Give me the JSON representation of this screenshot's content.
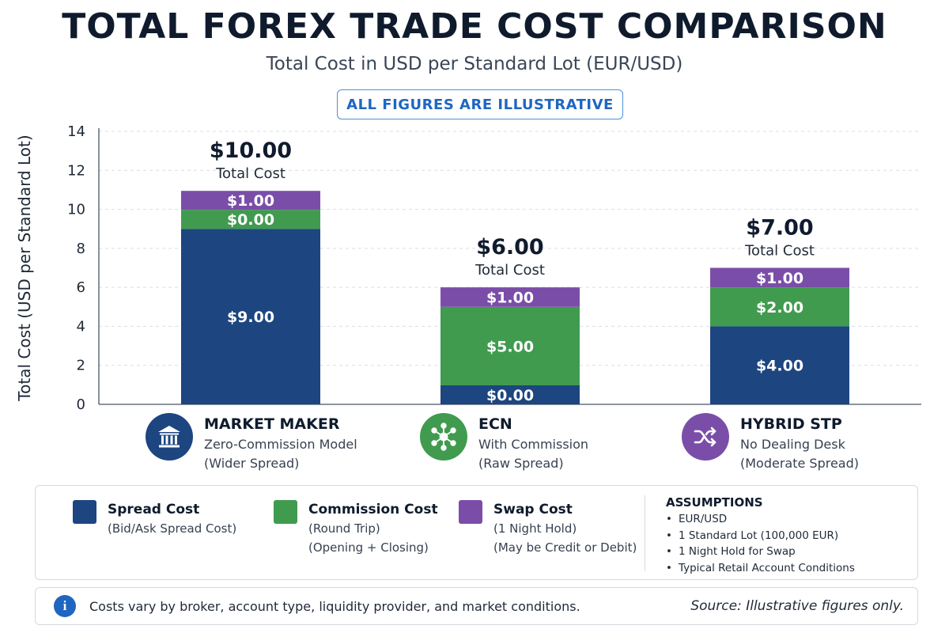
{
  "header": {
    "title": "TOTAL FOREX TRADE COST COMPARISON",
    "subtitle": "Total Cost in USD per Standard Lot (EUR/USD)",
    "badge": "ALL FIGURES ARE ILLUSTRATIVE"
  },
  "chart_data": {
    "type": "bar",
    "stacked": true,
    "categories": [
      "MARKET MAKER",
      "ECN",
      "HYBRID STP"
    ],
    "series": [
      {
        "name": "Spread Cost",
        "values": [
          9.0,
          0.0,
          4.0
        ],
        "labels": [
          "$9.00",
          "$0.00",
          "$4.00"
        ],
        "color": "#1d4580"
      },
      {
        "name": "Commission Cost",
        "values": [
          0.0,
          5.0,
          2.0
        ],
        "labels": [
          "$0.00",
          "$5.00",
          "$2.00"
        ],
        "color": "#409b4f"
      },
      {
        "name": "Swap Cost",
        "values": [
          1.0,
          1.0,
          1.0
        ],
        "labels": [
          "$1.00",
          "$1.00",
          "$1.00"
        ],
        "color": "#7a4ea8"
      }
    ],
    "totals": [
      "$10.00",
      "$6.00",
      "$7.00"
    ],
    "total_caption": "Total Cost",
    "ylabel": "Total Cost (USD per Standard Lot)",
    "ylim": [
      0,
      14
    ],
    "yticks": [
      "0",
      "2",
      "4",
      "6",
      "8",
      "10",
      "12",
      "14"
    ],
    "grid": true
  },
  "brokers": [
    {
      "name": "MARKET MAKER",
      "line1": "Zero-Commission Model",
      "line2": "(Wider Spread)",
      "icon": "bank-icon",
      "color": "#1d4580"
    },
    {
      "name": "ECN",
      "line1": "With Commission",
      "line2": "(Raw Spread)",
      "icon": "network-hub-icon",
      "color": "#409b4f"
    },
    {
      "name": "HYBRID STP",
      "line1": "No Dealing Desk",
      "line2": "(Moderate Spread)",
      "icon": "shuffle-icon",
      "color": "#7a4ea8"
    }
  ],
  "legend": {
    "items": [
      {
        "name": "Spread Cost",
        "desc1": "(Bid/Ask Spread Cost)",
        "desc2": "",
        "color": "#1d4580"
      },
      {
        "name": "Commission Cost",
        "desc1": "(Round Trip)",
        "desc2": "(Opening + Closing)",
        "color": "#409b4f"
      },
      {
        "name": "Swap Cost",
        "desc1": "(1 Night Hold)",
        "desc2": "(May be Credit or Debit)",
        "color": "#7a4ea8"
      }
    ],
    "assumptions_title": "ASSUMPTIONS",
    "assumptions": [
      "EUR/USD",
      "1 Standard Lot (100,000 EUR)",
      "1 Night Hold for Swap",
      "Typical Retail Account Conditions"
    ]
  },
  "footer": {
    "note": "Costs vary by broker, account type, liquidity provider, and market conditions.",
    "source_label": "Source:",
    "source_text": "Illustrative figures only."
  }
}
